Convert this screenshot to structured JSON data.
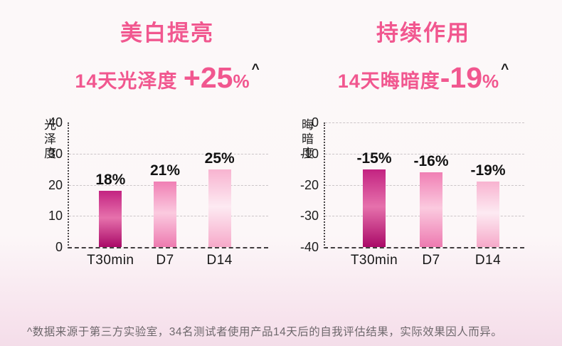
{
  "colors": {
    "accent_pink": "#f1578f",
    "text_dark": "#1c1c1c",
    "footnote_gray": "#6e686c",
    "gridline": "#cbc5c8",
    "background_top": "#fcf8f9",
    "background_bottom": "#f4dde9",
    "bar_gradients": [
      {
        "top": "#c32381",
        "mid": "#e671ac",
        "bottom": "#aa0a68"
      },
      {
        "top": "#f07fb4",
        "mid": "#fbcadf",
        "bottom": "#ed7ab0"
      },
      {
        "top": "#f8b3d0",
        "mid": "#fdeaf2",
        "bottom": "#f6a9c9"
      }
    ]
  },
  "chart_data": [
    {
      "type": "bar",
      "title": "美白提亮",
      "subtitle": {
        "prefix": "14天光泽度 ",
        "highlight": "+25",
        "suffix": "%",
        "footmark": "^"
      },
      "ylabel": "光泽度",
      "xlabel": "",
      "categories": [
        "T30min",
        "D7",
        "D14"
      ],
      "values": [
        18,
        21,
        25
      ],
      "value_labels": [
        "18%",
        "21%",
        "25%"
      ],
      "ylim": [
        0,
        40
      ],
      "yticks": [
        40,
        30,
        20,
        10,
        0
      ],
      "gridlines": [
        30,
        20,
        10
      ],
      "legend": "none"
    },
    {
      "type": "bar",
      "title": "持续作用",
      "subtitle": {
        "prefix": "14天晦暗度",
        "highlight": "-19",
        "suffix": "%",
        "footmark": "^"
      },
      "ylabel": "晦暗度",
      "xlabel": "",
      "categories": [
        "T30min",
        "D7",
        "D14"
      ],
      "values": [
        -15,
        -16,
        -19
      ],
      "value_labels": [
        "-15%",
        "-16%",
        "-19%"
      ],
      "ylim": [
        -40,
        0
      ],
      "yticks": [
        0,
        -10,
        -20,
        -30,
        -40
      ],
      "gridlines": [
        0,
        -10,
        -20,
        -30
      ],
      "legend": "none"
    }
  ],
  "page": {
    "footnote": "^数据来源于第三方实验室，34名测试者使用产品14天后的自我评估结果，实际效果因人而异。"
  }
}
